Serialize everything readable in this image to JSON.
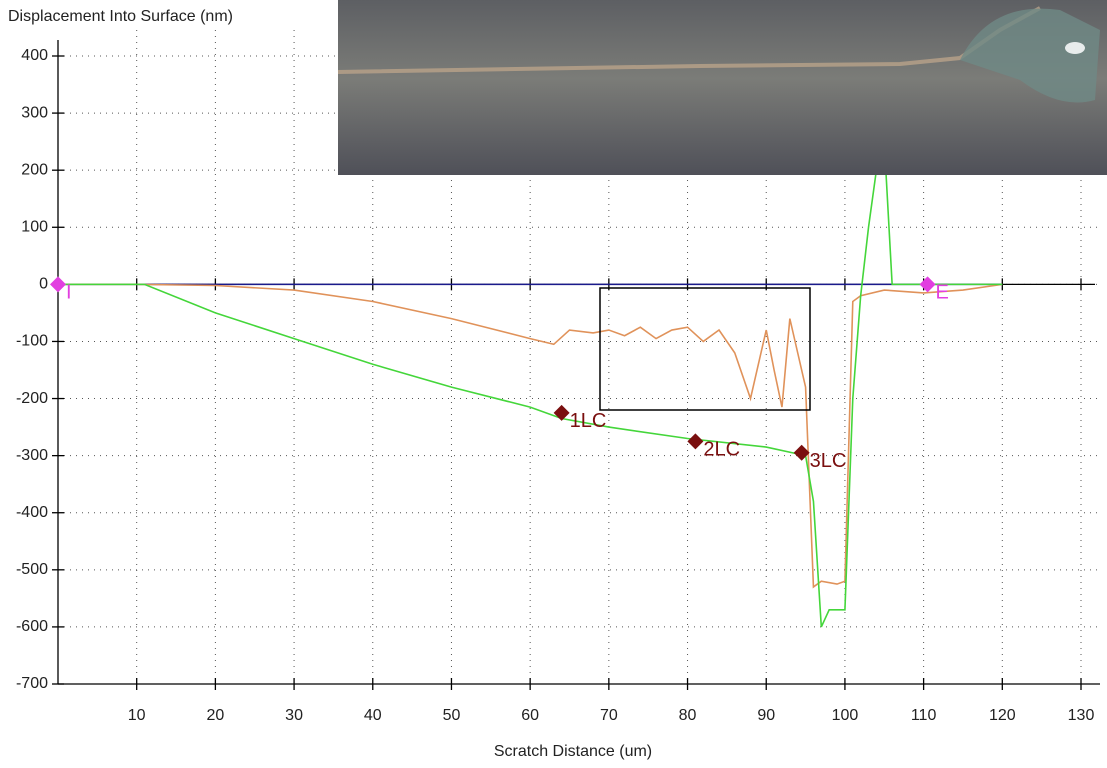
{
  "chart_data": {
    "type": "line",
    "ylabel": "Displacement Into Surface (nm)",
    "xlabel": "Scratch Distance  (um)",
    "xlim": [
      0,
      130
    ],
    "ylim": [
      -700,
      400
    ],
    "xticks": [
      10,
      20,
      30,
      40,
      50,
      60,
      70,
      80,
      90,
      100,
      110,
      120,
      130
    ],
    "yticks": [
      -700,
      -600,
      -500,
      -400,
      -300,
      -200,
      -100,
      0,
      100,
      200,
      300,
      400
    ],
    "grid": true,
    "series": [
      {
        "color": "#1a1a8c",
        "x": [
          0,
          10,
          20,
          30,
          40,
          50,
          60,
          70,
          80,
          90,
          100,
          110,
          120
        ],
        "values": [
          0,
          0,
          0,
          0,
          0,
          0,
          0,
          0,
          0,
          0,
          0,
          0,
          0
        ]
      },
      {
        "color": "#e0925a",
        "x": [
          0,
          10,
          20,
          30,
          40,
          50,
          60,
          63,
          65,
          68,
          70,
          72,
          74,
          76,
          78,
          80,
          82,
          84,
          86,
          88,
          90,
          91,
          92,
          93,
          94,
          95,
          96,
          97,
          99,
          100,
          101,
          102,
          105,
          110,
          115,
          120
        ],
        "values": [
          0,
          0,
          -2,
          -10,
          -30,
          -60,
          -95,
          -105,
          -80,
          -85,
          -80,
          -90,
          -75,
          -95,
          -80,
          -75,
          -100,
          -80,
          -120,
          -200,
          -80,
          -150,
          -215,
          -60,
          -120,
          -180,
          -530,
          -520,
          -525,
          -520,
          -30,
          -20,
          -10,
          -15,
          -10,
          0
        ]
      },
      {
        "color": "#44d63a",
        "x": [
          0,
          10,
          11,
          20,
          30,
          40,
          50,
          60,
          64,
          70,
          80,
          90,
          95,
          96,
          97,
          98,
          100,
          101,
          102,
          103,
          104,
          105,
          106,
          110,
          120
        ],
        "values": [
          0,
          0,
          0,
          -50,
          -95,
          -140,
          -180,
          -215,
          -235,
          -250,
          -270,
          -285,
          -300,
          -380,
          -600,
          -570,
          -570,
          -200,
          -20,
          100,
          200,
          250,
          0,
          0,
          0
        ]
      }
    ],
    "markers": [
      {
        "label": "I",
        "x": 0,
        "y": 0,
        "color": "#e23fe0"
      },
      {
        "label": "1LC",
        "x": 64,
        "y": -225,
        "color": "#7a0f0f"
      },
      {
        "label": "2LC",
        "x": 81,
        "y": -275,
        "color": "#7a0f0f"
      },
      {
        "label": "3LC",
        "x": 94.5,
        "y": -295,
        "color": "#7a0f0f"
      },
      {
        "label": "E",
        "x": 110.5,
        "y": 0,
        "color": "#e23fe0"
      }
    ]
  }
}
